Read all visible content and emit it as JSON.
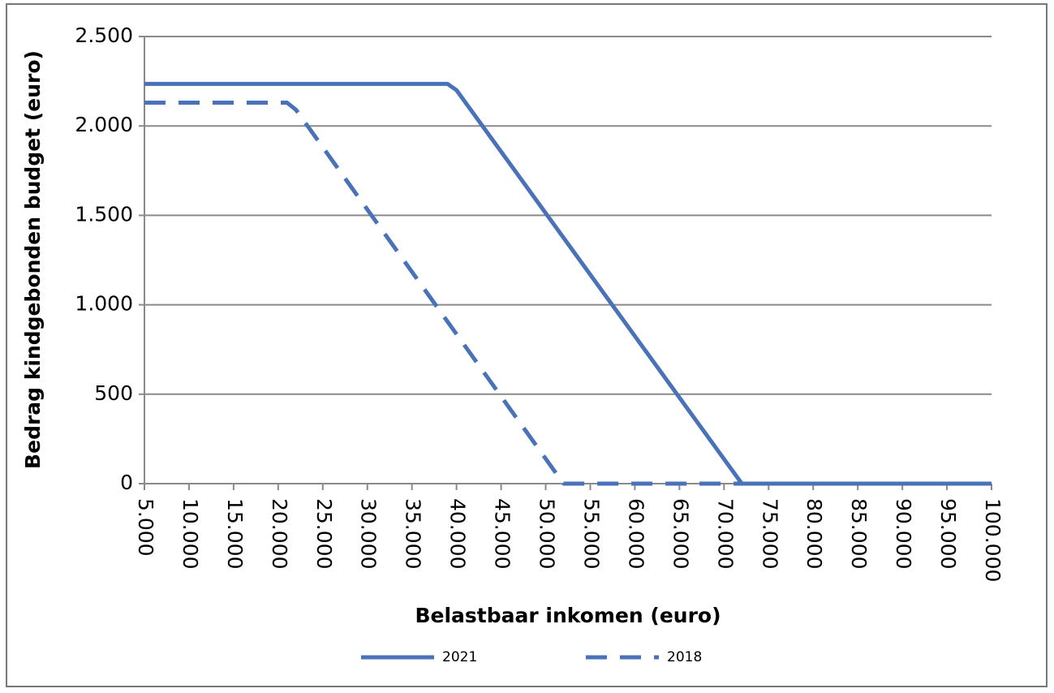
{
  "chart_data": {
    "type": "line",
    "xlabel": "Belastbaar inkomen (euro)",
    "ylabel": "Bedrag kindgebonden budget (euro)",
    "series": [
      {
        "name": "2021",
        "color": "#4a72b8",
        "line_style": "solid",
        "x": [
          5000,
          39000,
          40000,
          72000,
          100000
        ],
        "values": [
          2235,
          2235,
          2200,
          0,
          0
        ]
      },
      {
        "name": "2018",
        "color": "#4a72b8",
        "line_style": "dashed",
        "x": [
          5000,
          21000,
          22000,
          52000,
          100000
        ],
        "values": [
          2130,
          2130,
          2090,
          0,
          0
        ]
      }
    ],
    "xlim": [
      5000,
      100000
    ],
    "xticks": [
      {
        "value": 5000,
        "label": "5.000"
      },
      {
        "value": 10000,
        "label": "10.000"
      },
      {
        "value": 15000,
        "label": "15.000"
      },
      {
        "value": 20000,
        "label": "20.000"
      },
      {
        "value": 25000,
        "label": "25.000"
      },
      {
        "value": 30000,
        "label": "30.000"
      },
      {
        "value": 35000,
        "label": "35.000"
      },
      {
        "value": 40000,
        "label": "40.000"
      },
      {
        "value": 45000,
        "label": "45.000"
      },
      {
        "value": 50000,
        "label": "50.000"
      },
      {
        "value": 55000,
        "label": "55.000"
      },
      {
        "value": 60000,
        "label": "60.000"
      },
      {
        "value": 65000,
        "label": "65.000"
      },
      {
        "value": 70000,
        "label": "70.000"
      },
      {
        "value": 75000,
        "label": "75.000"
      },
      {
        "value": 80000,
        "label": "80.000"
      },
      {
        "value": 85000,
        "label": "85.000"
      },
      {
        "value": 90000,
        "label": "90.000"
      },
      {
        "value": 95000,
        "label": "95.000"
      },
      {
        "value": 100000,
        "label": "100.000"
      }
    ],
    "ylim": [
      0,
      2500
    ],
    "yticks": [
      0,
      500,
      {
        "value": 1000,
        "label": "1.000"
      },
      {
        "value": 1500,
        "label": "1.500"
      },
      {
        "value": 2000,
        "label": "2.000"
      },
      {
        "value": 2500,
        "label": "2.500"
      }
    ],
    "grid": true,
    "legend": "bottom"
  }
}
